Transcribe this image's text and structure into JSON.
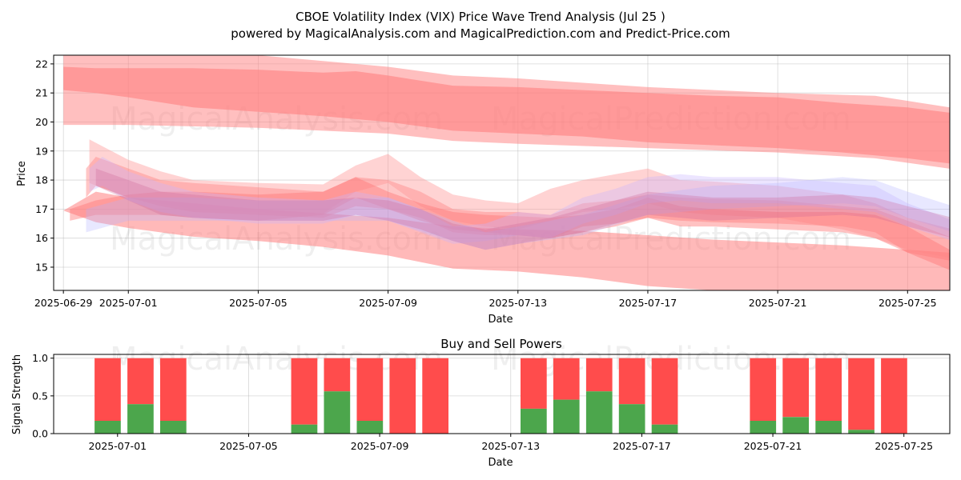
{
  "chart_data": [
    {
      "type": "area",
      "title_line1": "CBOE Volatility Index (VIX) Price Wave Trend Analysis (Jul 25 )",
      "title_line2": "powered by MagicalAnalysis.com and MagicalPrediction.com and Predict-Price.com",
      "xlabel": "Date",
      "ylabel": "Price",
      "ylim": [
        14.2,
        22.3
      ],
      "y_ticks": [
        15,
        16,
        17,
        18,
        19,
        20,
        21,
        22
      ],
      "x_ticks": [
        {
          "day": -2,
          "label": "2025-06-29"
        },
        {
          "day": 0,
          "label": "2025-07-01"
        },
        {
          "day": 4,
          "label": "2025-07-05"
        },
        {
          "day": 8,
          "label": "2025-07-09"
        },
        {
          "day": 12,
          "label": "2025-07-13"
        },
        {
          "day": 16,
          "label": "2025-07-17"
        },
        {
          "day": 20,
          "label": "2025-07-21"
        },
        {
          "day": 24,
          "label": "2025-07-25"
        }
      ],
      "x_range_days": [
        -2.3,
        25.3
      ],
      "grid": true,
      "watermarks": [
        "MagicalAnalysis.com",
        "MagicalPrediction.com"
      ],
      "bands": [
        {
          "name": "upper-wave",
          "color": "#ff8080",
          "opacity": 0.6,
          "days": [
            -2,
            -1,
            0,
            2,
            4,
            6,
            7,
            8,
            10,
            12,
            14,
            16,
            18,
            20,
            22,
            24,
            25.8
          ],
          "upper": [
            21.9,
            21.85,
            21.85,
            21.85,
            21.8,
            21.7,
            21.75,
            21.6,
            21.25,
            21.2,
            21.1,
            21.0,
            20.9,
            20.85,
            20.65,
            20.5,
            20.25
          ],
          "lower": [
            21.1,
            21.0,
            20.85,
            20.5,
            20.35,
            20.2,
            20.1,
            20.0,
            19.7,
            19.6,
            19.5,
            19.3,
            19.2,
            19.1,
            18.95,
            18.75,
            18.5
          ]
        },
        {
          "name": "upper-envelope",
          "color": "#ff8080",
          "opacity": 0.5,
          "days": [
            -2,
            0,
            4,
            8,
            10,
            12,
            16,
            20,
            23,
            25.9
          ],
          "upper": [
            22.3,
            22.3,
            22.3,
            21.9,
            21.6,
            21.5,
            21.2,
            21.0,
            20.9,
            20.4
          ],
          "lower": [
            19.9,
            19.9,
            19.8,
            19.6,
            19.35,
            19.25,
            19.1,
            18.95,
            18.75,
            18.3
          ]
        },
        {
          "name": "lower-envelope",
          "color": "#ff8080",
          "opacity": 0.55,
          "days": [
            -2,
            -1,
            0,
            2,
            4,
            6,
            8,
            10,
            12,
            14,
            16,
            18,
            20,
            22,
            24,
            25.9
          ],
          "upper": [
            16.95,
            17.6,
            17.4,
            17.2,
            17.0,
            16.85,
            16.7,
            16.4,
            16.3,
            16.25,
            16.1,
            15.95,
            15.85,
            15.75,
            15.6,
            15.45
          ],
          "lower": [
            16.95,
            16.55,
            16.35,
            16.05,
            15.9,
            15.7,
            15.4,
            14.95,
            14.85,
            14.65,
            14.35,
            14.2,
            14.2,
            14.2,
            14.2,
            14.2
          ]
        },
        {
          "name": "wave-1",
          "color": "#ff8080",
          "opacity": 0.45,
          "days": [
            -1.3,
            -1,
            0,
            1,
            2,
            4,
            6,
            7,
            8,
            9,
            10,
            11,
            12,
            13,
            14,
            15,
            16,
            17,
            18,
            20,
            22,
            23,
            24,
            25.4
          ],
          "upper": [
            18.4,
            18.8,
            18.4,
            18.0,
            17.9,
            17.75,
            17.6,
            18.1,
            18.0,
            17.6,
            17.0,
            16.9,
            16.9,
            16.8,
            17.2,
            17.3,
            17.5,
            17.4,
            17.35,
            17.3,
            17.1,
            17.0,
            16.6,
            16.0
          ],
          "lower": [
            17.4,
            17.8,
            17.4,
            17.1,
            16.9,
            16.8,
            16.7,
            17.1,
            17.0,
            16.7,
            16.2,
            16.1,
            16.1,
            16.0,
            16.4,
            16.5,
            16.7,
            16.6,
            16.55,
            16.5,
            16.4,
            16.2,
            15.5,
            15.2
          ]
        },
        {
          "name": "wave-2",
          "color": "#ff9090",
          "opacity": 0.4,
          "days": [
            -1.2,
            0,
            1,
            2,
            4,
            6,
            7,
            8,
            9,
            10,
            11,
            12,
            13,
            14,
            15,
            16,
            17,
            18,
            20,
            22,
            23,
            24,
            25.4
          ],
          "upper": [
            19.4,
            18.7,
            18.3,
            18.0,
            17.9,
            17.85,
            18.5,
            18.9,
            18.1,
            17.5,
            17.3,
            17.2,
            17.7,
            18.0,
            18.2,
            18.4,
            18.0,
            17.95,
            17.8,
            17.5,
            17.2,
            16.7,
            16.3
          ],
          "lower": [
            17.9,
            17.4,
            17.2,
            17.0,
            16.9,
            16.85,
            17.6,
            17.9,
            17.1,
            16.6,
            16.4,
            16.3,
            16.6,
            16.9,
            17.0,
            17.2,
            16.9,
            16.8,
            16.7,
            16.3,
            16.0,
            15.6,
            15.3
          ]
        },
        {
          "name": "wave-3",
          "color": "#ff7777",
          "opacity": 0.45,
          "days": [
            -1.8,
            -1,
            0,
            1,
            2,
            4,
            6,
            7,
            8,
            9,
            10,
            11,
            12,
            13,
            14,
            15,
            16,
            17,
            18,
            20,
            22,
            23,
            24,
            25.3
          ],
          "upper": [
            17.0,
            17.3,
            17.5,
            17.6,
            17.6,
            17.5,
            17.6,
            18.1,
            17.6,
            17.2,
            16.9,
            16.8,
            16.75,
            16.7,
            16.8,
            17.0,
            17.4,
            17.1,
            17.0,
            16.9,
            16.9,
            16.8,
            16.4,
            15.6
          ],
          "lower": [
            16.6,
            16.8,
            16.8,
            16.8,
            16.7,
            16.6,
            16.8,
            17.4,
            17.0,
            16.6,
            16.3,
            16.2,
            16.1,
            16.0,
            16.2,
            16.4,
            16.7,
            16.4,
            16.4,
            16.3,
            16.2,
            16.0,
            15.5,
            14.9
          ]
        },
        {
          "name": "wave-4",
          "color": "#c8b4ff",
          "opacity": 0.35,
          "days": [
            -1.2,
            -0.8,
            0,
            1,
            2,
            4,
            6,
            7,
            8,
            9,
            10,
            11,
            12,
            13,
            14,
            15,
            16,
            17,
            18,
            20,
            21,
            22,
            23,
            24,
            25.4
          ],
          "upper": [
            18.4,
            18.8,
            18.3,
            17.9,
            17.6,
            17.4,
            17.3,
            17.6,
            17.4,
            17.0,
            16.4,
            16.5,
            16.9,
            16.8,
            17.4,
            17.7,
            18.1,
            18.2,
            18.1,
            18.1,
            18.0,
            17.9,
            17.8,
            17.2,
            16.6
          ],
          "lower": [
            17.6,
            17.8,
            17.3,
            16.9,
            16.7,
            16.5,
            16.5,
            16.8,
            16.6,
            16.2,
            15.8,
            15.9,
            16.1,
            16.0,
            16.5,
            16.8,
            17.2,
            17.3,
            17.2,
            17.2,
            17.1,
            17.0,
            16.9,
            16.4,
            15.9
          ]
        },
        {
          "name": "wave-5",
          "color": "#b4b4ff",
          "opacity": 0.3,
          "days": [
            -1.3,
            0,
            2,
            4,
            6,
            8,
            10,
            11,
            12,
            14,
            16,
            18,
            20,
            22,
            23,
            24,
            25.4
          ],
          "upper": [
            17.0,
            17.4,
            17.4,
            17.3,
            17.3,
            17.4,
            16.6,
            16.2,
            16.4,
            16.8,
            17.5,
            17.8,
            17.9,
            18.1,
            18.0,
            17.6,
            17.1
          ],
          "lower": [
            16.2,
            16.6,
            16.6,
            16.6,
            16.6,
            16.6,
            15.9,
            15.6,
            15.8,
            16.1,
            16.8,
            17.0,
            17.1,
            17.2,
            17.1,
            16.7,
            16.2
          ]
        },
        {
          "name": "wave-6",
          "color": "#cc6699",
          "opacity": 0.3,
          "days": [
            -1.0,
            0,
            1,
            2,
            4,
            6,
            7,
            8,
            9,
            10,
            11,
            12,
            13,
            14,
            15,
            16,
            17,
            18,
            20,
            22,
            23,
            24,
            25.4
          ],
          "upper": [
            18.4,
            18.0,
            17.6,
            17.5,
            17.3,
            17.3,
            17.4,
            17.3,
            17.0,
            16.5,
            16.3,
            16.5,
            16.7,
            17.0,
            17.3,
            17.6,
            17.5,
            17.4,
            17.4,
            17.5,
            17.4,
            17.1,
            16.7
          ],
          "lower": [
            17.8,
            17.3,
            16.8,
            16.7,
            16.6,
            16.6,
            16.8,
            16.6,
            16.3,
            15.9,
            15.6,
            15.8,
            16.0,
            16.2,
            16.5,
            16.8,
            16.7,
            16.6,
            16.7,
            16.8,
            16.7,
            16.4,
            16.0
          ]
        }
      ]
    },
    {
      "type": "bar",
      "title": "Buy and Sell Powers",
      "xlabel": "Date",
      "ylabel": "Signal Strength",
      "ylim": [
        0,
        1.05
      ],
      "y_ticks": [
        0.0,
        0.5,
        1.0
      ],
      "y_tick_labels": [
        "0.0",
        "0.5",
        "1.0"
      ],
      "x_ticks": [
        {
          "day": 0,
          "label": "2025-07-01"
        },
        {
          "day": 4,
          "label": "2025-07-05"
        },
        {
          "day": 8,
          "label": "2025-07-09"
        },
        {
          "day": 12,
          "label": "2025-07-13"
        },
        {
          "day": 16,
          "label": "2025-07-17"
        },
        {
          "day": 20,
          "label": "2025-07-21"
        },
        {
          "day": 24,
          "label": "2025-07-25"
        }
      ],
      "x_range_days": [
        -1.95,
        25.4
      ],
      "grid": true,
      "series": [
        {
          "name": "buy",
          "color": "#4ca64c"
        },
        {
          "name": "sell",
          "color": "#ff4c4c"
        }
      ],
      "bars": [
        {
          "day": -0.3,
          "buy": 0.17
        },
        {
          "day": 0.7,
          "buy": 0.39
        },
        {
          "day": 1.7,
          "buy": 0.17
        },
        {
          "day": 5.7,
          "buy": 0.12
        },
        {
          "day": 6.7,
          "buy": 0.56
        },
        {
          "day": 7.7,
          "buy": 0.17
        },
        {
          "day": 8.7,
          "buy": 0.0
        },
        {
          "day": 9.7,
          "buy": 0.0
        },
        {
          "day": 12.7,
          "buy": 0.33
        },
        {
          "day": 13.7,
          "buy": 0.45
        },
        {
          "day": 14.7,
          "buy": 0.56
        },
        {
          "day": 15.7,
          "buy": 0.39
        },
        {
          "day": 16.7,
          "buy": 0.12
        },
        {
          "day": 19.7,
          "buy": 0.17
        },
        {
          "day": 20.7,
          "buy": 0.22
        },
        {
          "day": 21.7,
          "buy": 0.17
        },
        {
          "day": 22.7,
          "buy": 0.05
        },
        {
          "day": 23.7,
          "buy": 0.0
        }
      ],
      "bar_total": 1.0
    }
  ]
}
